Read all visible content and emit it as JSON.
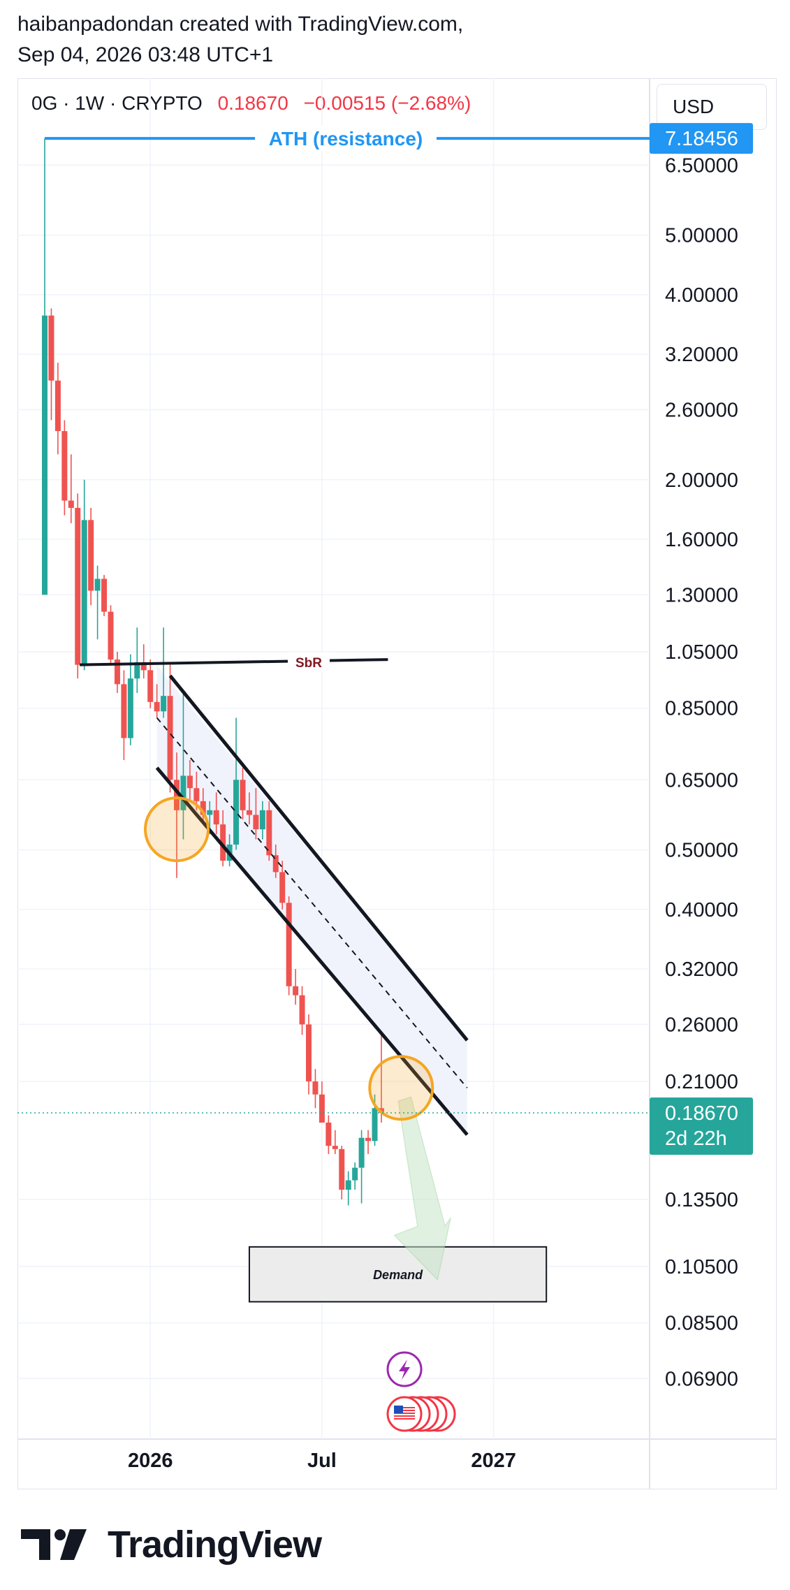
{
  "header": {
    "line1": "haibanpadondan created with TradingView.com,",
    "line2": "Sep 04, 2026 03:48 UTC+1"
  },
  "symbol": {
    "name": "0G · 1W · CRYPTO",
    "price": "0.18670",
    "change": "−0.00515 (−2.68%)",
    "currency": "USD"
  },
  "colors": {
    "up": "#26a69a",
    "down": "#ef5350",
    "ath_line": "#2196f3",
    "orange": "#f5a623",
    "channel_fill": "#eef1fb",
    "price_badge": "#26a69a",
    "text": "#131722",
    "grid": "#f0f3fa"
  },
  "icons": [
    "lightning-event-icon",
    "us-flag-event-icon"
  ],
  "footer": {
    "brand": "TradingView"
  },
  "chart_data": {
    "type": "candlestick",
    "scale": "log",
    "ylim": [
      0.055,
      9.0
    ],
    "y_ticks": [
      "6.50000",
      "5.00000",
      "4.00000",
      "3.20000",
      "2.60000",
      "2.00000",
      "1.60000",
      "1.30000",
      "1.05000",
      "0.85000",
      "0.65000",
      "0.50000",
      "0.40000",
      "0.32000",
      "0.26000",
      "0.21000",
      "0.13500",
      "0.10500",
      "0.08500",
      "0.06900"
    ],
    "x_ticks": [
      "2026",
      "Jul",
      "2027"
    ],
    "x_tick_weeks": [
      16,
      42,
      68
    ],
    "last_price_label": "0.18670",
    "countdown_label": "2d 22h",
    "ath_label": "7.18456",
    "candles": [
      {
        "o": 1.3,
        "h": 7.18,
        "l": 1.3,
        "c": 3.7
      },
      {
        "o": 3.7,
        "h": 3.8,
        "l": 2.5,
        "c": 2.9
      },
      {
        "o": 2.9,
        "h": 3.1,
        "l": 2.2,
        "c": 2.4
      },
      {
        "o": 2.4,
        "h": 2.5,
        "l": 1.75,
        "c": 1.85
      },
      {
        "o": 1.85,
        "h": 2.2,
        "l": 1.7,
        "c": 1.8
      },
      {
        "o": 1.8,
        "h": 1.9,
        "l": 0.95,
        "c": 1.0
      },
      {
        "o": 1.0,
        "h": 2.0,
        "l": 0.98,
        "c": 1.72
      },
      {
        "o": 1.72,
        "h": 1.8,
        "l": 1.25,
        "c": 1.32
      },
      {
        "o": 1.32,
        "h": 1.45,
        "l": 1.1,
        "c": 1.38
      },
      {
        "o": 1.38,
        "h": 1.4,
        "l": 1.2,
        "c": 1.22
      },
      {
        "o": 1.22,
        "h": 1.25,
        "l": 1.0,
        "c": 1.02
      },
      {
        "o": 1.02,
        "h": 1.05,
        "l": 0.9,
        "c": 0.93
      },
      {
        "o": 0.93,
        "h": 0.98,
        "l": 0.7,
        "c": 0.76
      },
      {
        "o": 0.76,
        "h": 1.04,
        "l": 0.74,
        "c": 0.95
      },
      {
        "o": 0.95,
        "h": 1.15,
        "l": 0.9,
        "c": 1.01
      },
      {
        "o": 1.01,
        "h": 1.08,
        "l": 0.95,
        "c": 0.98
      },
      {
        "o": 0.98,
        "h": 1.02,
        "l": 0.85,
        "c": 0.87
      },
      {
        "o": 0.87,
        "h": 0.93,
        "l": 0.82,
        "c": 0.84
      },
      {
        "o": 0.84,
        "h": 1.15,
        "l": 0.82,
        "c": 0.89
      },
      {
        "o": 0.89,
        "h": 1.0,
        "l": 0.62,
        "c": 0.65
      },
      {
        "o": 0.65,
        "h": 0.72,
        "l": 0.45,
        "c": 0.58
      },
      {
        "o": 0.58,
        "h": 0.9,
        "l": 0.52,
        "c": 0.66
      },
      {
        "o": 0.66,
        "h": 0.7,
        "l": 0.6,
        "c": 0.63
      },
      {
        "o": 0.63,
        "h": 0.67,
        "l": 0.58,
        "c": 0.6
      },
      {
        "o": 0.6,
        "h": 0.63,
        "l": 0.55,
        "c": 0.57
      },
      {
        "o": 0.57,
        "h": 0.6,
        "l": 0.53,
        "c": 0.58
      },
      {
        "o": 0.58,
        "h": 0.62,
        "l": 0.53,
        "c": 0.55
      },
      {
        "o": 0.55,
        "h": 0.58,
        "l": 0.47,
        "c": 0.48
      },
      {
        "o": 0.48,
        "h": 0.53,
        "l": 0.47,
        "c": 0.51
      },
      {
        "o": 0.51,
        "h": 0.82,
        "l": 0.5,
        "c": 0.65
      },
      {
        "o": 0.65,
        "h": 0.68,
        "l": 0.56,
        "c": 0.58
      },
      {
        "o": 0.58,
        "h": 0.62,
        "l": 0.55,
        "c": 0.57
      },
      {
        "o": 0.57,
        "h": 0.63,
        "l": 0.52,
        "c": 0.54
      },
      {
        "o": 0.54,
        "h": 0.6,
        "l": 0.52,
        "c": 0.58
      },
      {
        "o": 0.58,
        "h": 0.6,
        "l": 0.48,
        "c": 0.49
      },
      {
        "o": 0.49,
        "h": 0.51,
        "l": 0.45,
        "c": 0.46
      },
      {
        "o": 0.46,
        "h": 0.48,
        "l": 0.4,
        "c": 0.41
      },
      {
        "o": 0.41,
        "h": 0.42,
        "l": 0.29,
        "c": 0.3
      },
      {
        "o": 0.3,
        "h": 0.32,
        "l": 0.28,
        "c": 0.29
      },
      {
        "o": 0.29,
        "h": 0.3,
        "l": 0.25,
        "c": 0.26
      },
      {
        "o": 0.26,
        "h": 0.27,
        "l": 0.2,
        "c": 0.21
      },
      {
        "o": 0.21,
        "h": 0.22,
        "l": 0.19,
        "c": 0.2
      },
      {
        "o": 0.2,
        "h": 0.21,
        "l": 0.18,
        "c": 0.18
      },
      {
        "o": 0.18,
        "h": 0.185,
        "l": 0.16,
        "c": 0.165
      },
      {
        "o": 0.165,
        "h": 0.175,
        "l": 0.16,
        "c": 0.163
      },
      {
        "o": 0.163,
        "h": 0.165,
        "l": 0.135,
        "c": 0.14
      },
      {
        "o": 0.14,
        "h": 0.15,
        "l": 0.132,
        "c": 0.145
      },
      {
        "o": 0.145,
        "h": 0.155,
        "l": 0.14,
        "c": 0.152
      },
      {
        "o": 0.152,
        "h": 0.175,
        "l": 0.133,
        "c": 0.17
      },
      {
        "o": 0.17,
        "h": 0.175,
        "l": 0.16,
        "c": 0.168
      },
      {
        "o": 0.168,
        "h": 0.2,
        "l": 0.165,
        "c": 0.19
      },
      {
        "o": 0.19,
        "h": 0.25,
        "l": 0.18,
        "c": 0.1867
      }
    ],
    "annotations": {
      "ath": {
        "label": "ATH (resistance)",
        "price": 7.18456
      },
      "sbr": {
        "label": "SbR",
        "price": 1.0,
        "price_end": 1.02
      },
      "demand": {
        "label": "Demand",
        "top": 0.113,
        "bottom": 0.092
      },
      "channel": {
        "upper": [
          [
            19,
            0.96
          ],
          [
            64,
            0.245
          ]
        ],
        "lower": [
          [
            17,
            0.68
          ],
          [
            64,
            0.172
          ]
        ],
        "middle": [
          [
            17,
            0.82
          ],
          [
            64,
            0.205
          ]
        ]
      },
      "circles": [
        [
          20,
          0.54
        ],
        [
          54,
          0.205
        ]
      ]
    }
  }
}
